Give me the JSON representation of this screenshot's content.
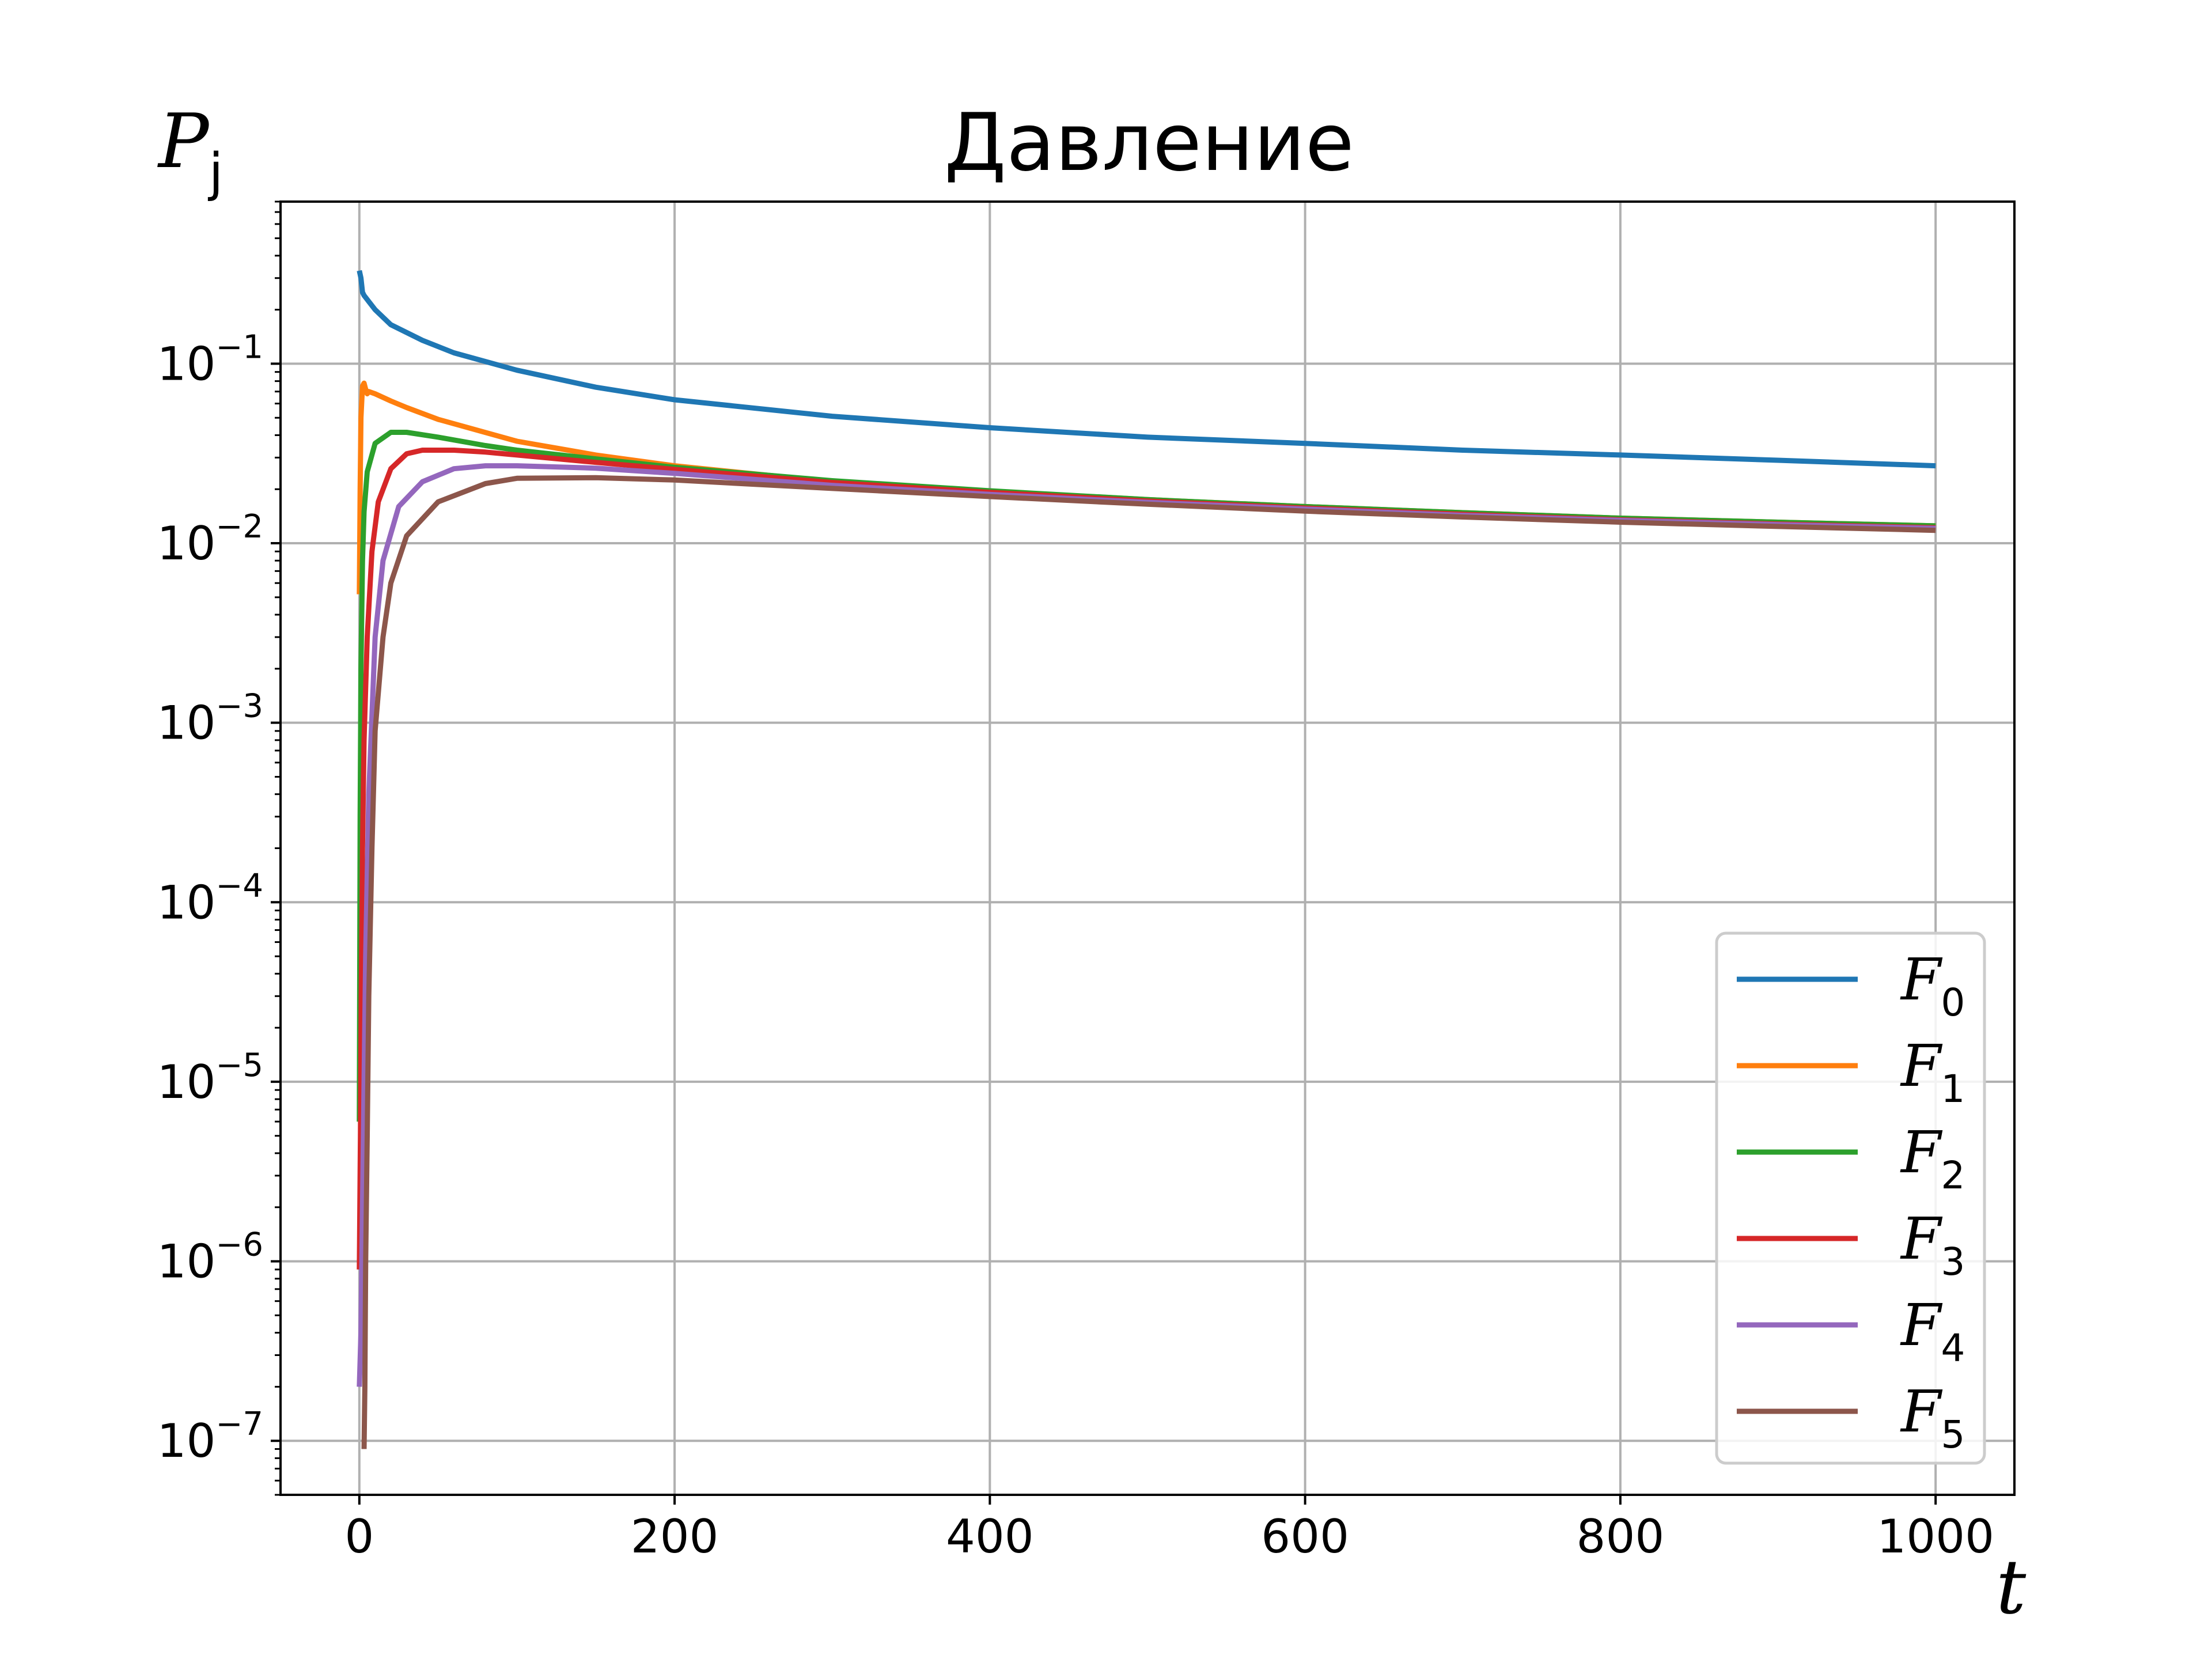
{
  "chart_data": {
    "type": "line",
    "title": "Давление",
    "xlabel": "t",
    "ylabel": {
      "base": "P",
      "sub": "j"
    },
    "xscale": "linear",
    "yscale": "log",
    "xlim": [
      -50,
      1050
    ],
    "ylim": [
      5e-08,
      0.8
    ],
    "grid": true,
    "legend_position": "lower-right",
    "x_ticks": [
      {
        "value": 0,
        "label": "0"
      },
      {
        "value": 200,
        "label": "200"
      },
      {
        "value": 400,
        "label": "400"
      },
      {
        "value": 600,
        "label": "600"
      },
      {
        "value": 800,
        "label": "800"
      },
      {
        "value": 1000,
        "label": "1000"
      }
    ],
    "y_ticks": [
      {
        "value": 1e-07,
        "base": "10",
        "exp": "−7"
      },
      {
        "value": 1e-06,
        "base": "10",
        "exp": "−6"
      },
      {
        "value": 1e-05,
        "base": "10",
        "exp": "−5"
      },
      {
        "value": 0.0001,
        "base": "10",
        "exp": "−4"
      },
      {
        "value": 0.001,
        "base": "10",
        "exp": "−3"
      },
      {
        "value": 0.01,
        "base": "10",
        "exp": "−2"
      },
      {
        "value": 0.1,
        "base": "10",
        "exp": "−1"
      }
    ],
    "series": [
      {
        "name": {
          "base": "F",
          "sub": "0"
        },
        "color": "#1f77b4",
        "x": [
          0,
          1,
          2,
          3,
          10,
          20,
          40,
          60,
          100,
          150,
          200,
          300,
          400,
          500,
          600,
          700,
          800,
          900,
          1000
        ],
        "y": [
          0.33,
          0.3,
          0.25,
          0.24,
          0.2,
          0.165,
          0.135,
          0.115,
          0.092,
          0.074,
          0.063,
          0.051,
          0.044,
          0.039,
          0.036,
          0.033,
          0.031,
          0.029,
          0.027
        ]
      },
      {
        "name": {
          "base": "F",
          "sub": "1"
        },
        "color": "#ff7f0e",
        "x": [
          0,
          0.5,
          1,
          2,
          3,
          4,
          5,
          6,
          10,
          20,
          30,
          50,
          100,
          150,
          200,
          300,
          400,
          500,
          600,
          700,
          800,
          900,
          1000
        ],
        "y": [
          0.0052,
          0.02,
          0.05,
          0.075,
          0.078,
          0.072,
          0.068,
          0.07,
          0.068,
          0.062,
          0.057,
          0.049,
          0.037,
          0.031,
          0.027,
          0.022,
          0.0195,
          0.0175,
          0.016,
          0.0148,
          0.0138,
          0.0131,
          0.0125
        ]
      },
      {
        "name": {
          "base": "F",
          "sub": "2"
        },
        "color": "#2ca02c",
        "x": [
          0,
          0.5,
          1,
          2,
          3,
          5,
          10,
          20,
          30,
          50,
          80,
          100,
          150,
          200,
          300,
          400,
          500,
          600,
          700,
          800,
          900,
          1000
        ],
        "y": [
          6e-06,
          0.0003,
          0.002,
          0.008,
          0.015,
          0.025,
          0.036,
          0.0415,
          0.0415,
          0.039,
          0.035,
          0.033,
          0.0295,
          0.0265,
          0.0223,
          0.0196,
          0.0175,
          0.016,
          0.0148,
          0.0138,
          0.0131,
          0.0125
        ]
      },
      {
        "name": {
          "base": "F",
          "sub": "3"
        },
        "color": "#d62728",
        "x": [
          0,
          0.7,
          1.2,
          2,
          3,
          5,
          8,
          12,
          20,
          30,
          40,
          60,
          80,
          100,
          150,
          200,
          300,
          400,
          500,
          600,
          700,
          800,
          900,
          1000
        ],
        "y": [
          9e-07,
          5e-06,
          3e-05,
          0.0002,
          0.0008,
          0.003,
          0.009,
          0.017,
          0.026,
          0.0315,
          0.033,
          0.033,
          0.0322,
          0.031,
          0.0282,
          0.0258,
          0.0218,
          0.0192,
          0.0172,
          0.0157,
          0.0145,
          0.0135,
          0.0128,
          0.0122
        ]
      },
      {
        "name": {
          "base": "F",
          "sub": "4"
        },
        "color": "#9467bd",
        "x": [
          0,
          1,
          2,
          3,
          4,
          6,
          10,
          15,
          25,
          40,
          60,
          80,
          100,
          150,
          200,
          300,
          400,
          500,
          600,
          700,
          800,
          900,
          1000
        ],
        "y": [
          2e-07,
          4e-07,
          2e-06,
          1e-05,
          5e-05,
          0.0004,
          0.003,
          0.008,
          0.016,
          0.022,
          0.026,
          0.027,
          0.027,
          0.0262,
          0.0245,
          0.021,
          0.0187,
          0.0169,
          0.0155,
          0.0143,
          0.0134,
          0.0127,
          0.0121
        ]
      },
      {
        "name": {
          "base": "F",
          "sub": "5"
        },
        "color": "#8c564b",
        "x": [
          3,
          3.5,
          4,
          5,
          6,
          8,
          10,
          15,
          20,
          30,
          50,
          80,
          100,
          150,
          200,
          300,
          400,
          500,
          600,
          700,
          800,
          900,
          1000
        ],
        "y": [
          9e-08,
          2e-07,
          1e-06,
          5e-06,
          3e-05,
          0.0002,
          0.0009,
          0.003,
          0.006,
          0.011,
          0.017,
          0.0215,
          0.023,
          0.0232,
          0.0225,
          0.0202,
          0.0182,
          0.0165,
          0.0151,
          0.014,
          0.0131,
          0.0124,
          0.0118
        ]
      }
    ]
  }
}
